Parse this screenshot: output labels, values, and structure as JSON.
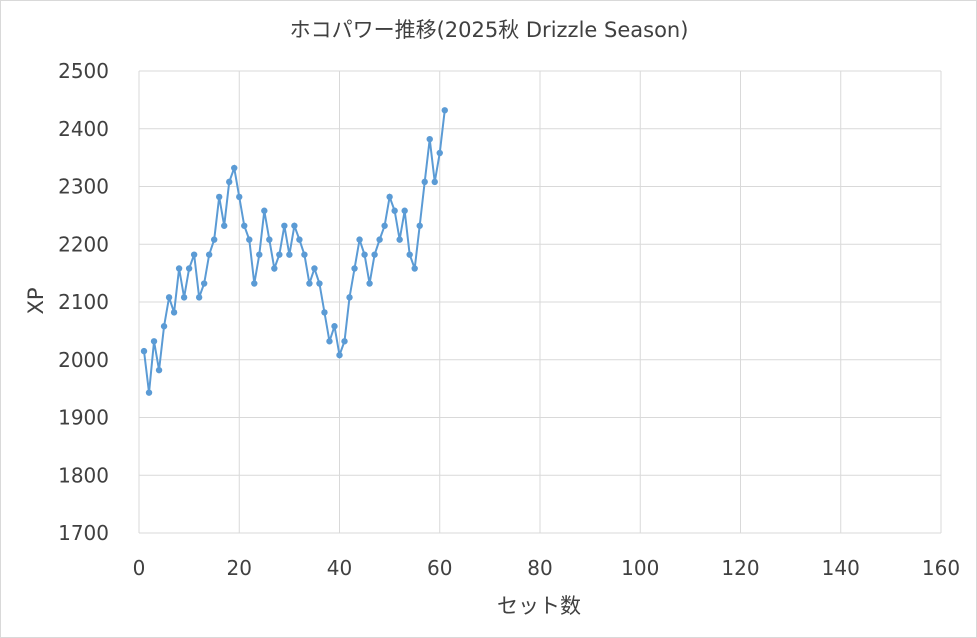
{
  "chart_data": {
    "type": "scatter",
    "title": "ホコパワー推移(2025秋 Drizzle Season)",
    "xlabel": "セット数",
    "ylabel": "XP",
    "xlim": [
      0,
      160
    ],
    "ylim": [
      1700,
      2500
    ],
    "x_ticks": [
      "0",
      "20",
      "40",
      "60",
      "80",
      "100",
      "120",
      "140",
      "160"
    ],
    "y_ticks": [
      "2500",
      "2400",
      "2300",
      "2200",
      "2100",
      "2000",
      "1900",
      "1800",
      "1700"
    ],
    "grid": true,
    "legend": "none",
    "series_color": "#5b9bd5",
    "series": [
      {
        "x": [
          1,
          2,
          3,
          4,
          5,
          6,
          7,
          8,
          9,
          10,
          11,
          12,
          13,
          14,
          15,
          16,
          17,
          18,
          19,
          20,
          21,
          22,
          23,
          24,
          25,
          26,
          27,
          28,
          29,
          30,
          31,
          32,
          33,
          34,
          35,
          36,
          37,
          38,
          39,
          40,
          41,
          42,
          43,
          44,
          45,
          46,
          47,
          48,
          49,
          50,
          51,
          52,
          53,
          54,
          55,
          56,
          57,
          58,
          59,
          60,
          61
        ],
        "values": [
          2015,
          1943,
          2032,
          1982,
          2058,
          2108,
          2082,
          2158,
          2108,
          2158,
          2182,
          2108,
          2132,
          2182,
          2208,
          2282,
          2232,
          2308,
          2332,
          2282,
          2232,
          2208,
          2132,
          2182,
          2258,
          2208,
          2158,
          2182,
          2232,
          2182,
          2232,
          2208,
          2182,
          2132,
          2158,
          2132,
          2082,
          2032,
          2058,
          2008,
          2032,
          2108,
          2158,
          2208,
          2182,
          2132,
          2182,
          2208,
          2232,
          2282,
          2258,
          2208,
          2258,
          2182,
          2158,
          2232,
          2308,
          2382,
          2308,
          2358,
          2432
        ]
      }
    ]
  }
}
